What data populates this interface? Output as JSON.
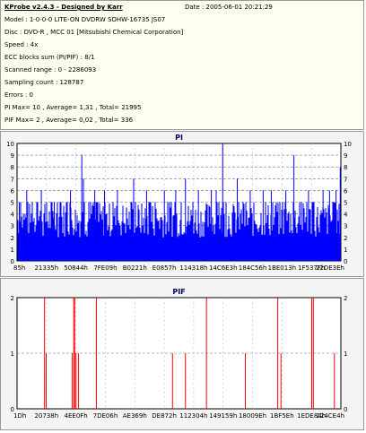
{
  "header": {
    "title": "KProbe v2.4.3 - Designed by Karr",
    "date": "Date : 2005-06-01 20:21:29",
    "lines": [
      "Model : 1-0-0-0 LITE-ON DVDRW SOHW-16735 JS07",
      "Disc : DVD-R , MCC 01 [Mitsubishi Chemical Corporation]",
      "Speed : 4x",
      "ECC blocks sum (PI/PIF) : 8/1",
      "Scanned range : 0 - 2286093",
      "Sampling count : 128787",
      "Errors : 0",
      "PI Max= 10 , Average= 1,31 , Total= 21995",
      "PIF Max= 2 , Average= 0,02 , Total= 336"
    ]
  },
  "chart_data": [
    {
      "type": "bar",
      "title": "PI",
      "color": "#0000ff",
      "ylim": [
        0,
        10
      ],
      "yticks": [
        0,
        1,
        2,
        3,
        4,
        5,
        6,
        7,
        8,
        9,
        10
      ],
      "xtick_labels": [
        "85h",
        "21335h",
        "50844h",
        "7FE09h",
        "B0221h",
        "E0857h",
        "114318h",
        "14C6E3h",
        "184C56h",
        "1BE013h",
        "1F537Fh",
        "22DE3Eh"
      ],
      "grid": "dashed",
      "baseline_range": [
        2,
        5
      ],
      "spikes": [
        {
          "x": 0.007,
          "y": 5
        },
        {
          "x": 0.03,
          "y": 6
        },
        {
          "x": 0.075,
          "y": 6
        },
        {
          "x": 0.115,
          "y": 5
        },
        {
          "x": 0.165,
          "y": 6
        },
        {
          "x": 0.2,
          "y": 9
        },
        {
          "x": 0.205,
          "y": 7
        },
        {
          "x": 0.24,
          "y": 6
        },
        {
          "x": 0.27,
          "y": 6
        },
        {
          "x": 0.31,
          "y": 6
        },
        {
          "x": 0.36,
          "y": 7
        },
        {
          "x": 0.4,
          "y": 6
        },
        {
          "x": 0.455,
          "y": 6
        },
        {
          "x": 0.49,
          "y": 6
        },
        {
          "x": 0.52,
          "y": 7
        },
        {
          "x": 0.56,
          "y": 6
        },
        {
          "x": 0.6,
          "y": 6
        },
        {
          "x": 0.615,
          "y": 6
        },
        {
          "x": 0.635,
          "y": 10
        },
        {
          "x": 0.68,
          "y": 7
        },
        {
          "x": 0.72,
          "y": 6
        },
        {
          "x": 0.76,
          "y": 6
        },
        {
          "x": 0.785,
          "y": 6
        },
        {
          "x": 0.83,
          "y": 6
        },
        {
          "x": 0.855,
          "y": 9
        },
        {
          "x": 0.9,
          "y": 6
        },
        {
          "x": 0.945,
          "y": 6
        },
        {
          "x": 0.965,
          "y": 6
        },
        {
          "x": 0.985,
          "y": 6
        },
        {
          "x": 0.998,
          "y": 8
        }
      ]
    },
    {
      "type": "bar",
      "title": "PIF",
      "color": "#ff0000",
      "ylim": [
        0,
        2
      ],
      "yticks": [
        0,
        1,
        2
      ],
      "xtick_labels": [
        "1Dh",
        "20738h",
        "4EE0Fh",
        "7DE06h",
        "AE369h",
        "DE872h",
        "112304h",
        "149159h",
        "18009Eh",
        "1BF5Eh",
        "1EDE84h",
        "224CE4h"
      ],
      "grid": "dashed",
      "bars": [
        {
          "x": 0.085,
          "y": 2
        },
        {
          "x": 0.09,
          "y": 1
        },
        {
          "x": 0.17,
          "y": 1
        },
        {
          "x": 0.175,
          "y": 2
        },
        {
          "x": 0.178,
          "y": 2
        },
        {
          "x": 0.182,
          "y": 1
        },
        {
          "x": 0.19,
          "y": 1
        },
        {
          "x": 0.245,
          "y": 2
        },
        {
          "x": 0.48,
          "y": 1
        },
        {
          "x": 0.52,
          "y": 1
        },
        {
          "x": 0.585,
          "y": 2
        },
        {
          "x": 0.705,
          "y": 1
        },
        {
          "x": 0.805,
          "y": 2
        },
        {
          "x": 0.815,
          "y": 1
        },
        {
          "x": 0.91,
          "y": 2
        },
        {
          "x": 0.915,
          "y": 2
        },
        {
          "x": 0.98,
          "y": 1
        }
      ]
    }
  ]
}
